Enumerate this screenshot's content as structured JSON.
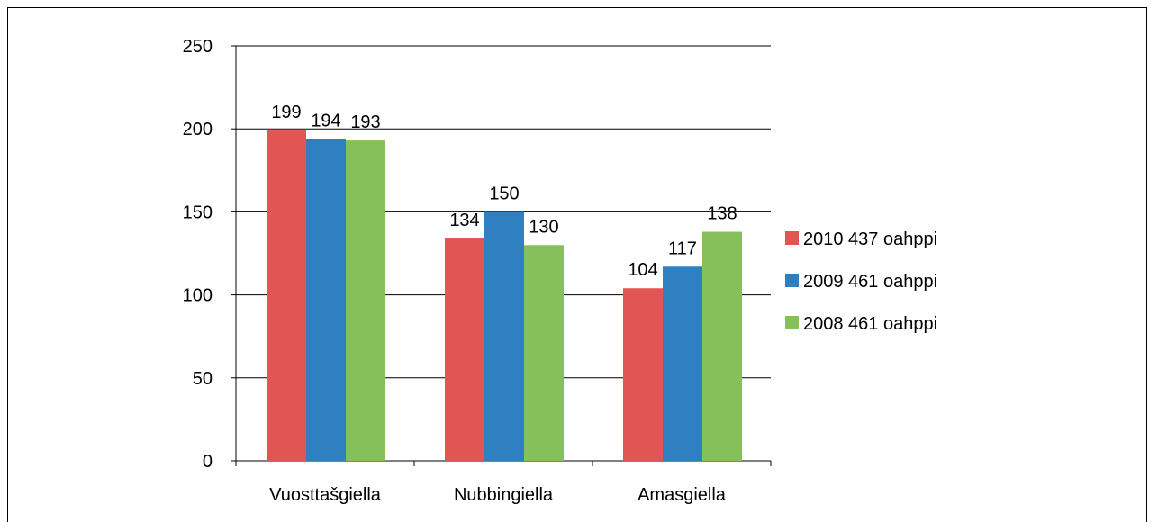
{
  "chart_data": {
    "type": "bar",
    "categories": [
      "Vuosttašgiella",
      "Nubbingiella",
      "Amasgiella"
    ],
    "series": [
      {
        "name": "2010 437 oahppi",
        "color": "#e15552",
        "values": [
          199,
          134,
          104
        ]
      },
      {
        "name": "2009 461 oahppi",
        "color": "#2e80c1",
        "values": [
          194,
          150,
          117
        ]
      },
      {
        "name": "2008 461 oahppi",
        "color": "#86c05a",
        "values": [
          193,
          130,
          138
        ]
      }
    ],
    "y_ticks": [
      0,
      50,
      100,
      150,
      200,
      250
    ],
    "ylim": [
      0,
      250
    ],
    "grid": true,
    "legend_position": "right",
    "title": "",
    "xlabel": "",
    "ylabel": ""
  }
}
